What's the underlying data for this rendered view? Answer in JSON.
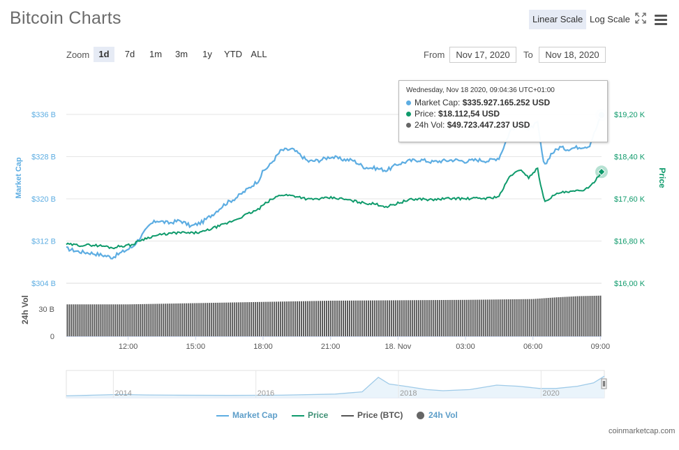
{
  "header": {
    "title": "Bitcoin Charts",
    "linear_scale_label": "Linear Scale",
    "log_scale_label": "Log Scale"
  },
  "zoom": {
    "label": "Zoom",
    "options": [
      "1d",
      "7d",
      "1m",
      "3m",
      "1y",
      "YTD",
      "ALL"
    ],
    "selected": "1d"
  },
  "range": {
    "from_label": "From",
    "from_value": "Nov 17, 2020",
    "to_label": "To",
    "to_value": "Nov 18, 2020"
  },
  "tooltip": {
    "header": "Wednesday, Nov 18 2020, 09:04:36 UTC+01:00",
    "market_cap_label": "Market Cap:",
    "market_cap_value": "$335.927.165.252 USD",
    "price_label": "Price:",
    "price_value": "$18.112,54 USD",
    "vol_label": "24h Vol:",
    "vol_value": "$49.723.447.237 USD"
  },
  "legend": {
    "market_cap": "Market Cap",
    "price": "Price",
    "price_btc": "Price (BTC)",
    "vol": "24h Vol"
  },
  "watermark": "coinmarketcap.com",
  "colors": {
    "market_cap": "#5dade2",
    "price": "#0e9a6b",
    "volume": "#555555",
    "grid": "#e6e6e6",
    "navigator": "#9ecae8"
  },
  "chart_data": {
    "type": "line",
    "left_axis": {
      "title": "Market Cap",
      "ticks": [
        "$304 B",
        "$312 B",
        "$320 B",
        "$328 B",
        "$336 B"
      ],
      "range": [
        304,
        336
      ]
    },
    "right_axis": {
      "title": "Price",
      "ticks": [
        "$16,00 K",
        "$16,80 K",
        "$17,60 K",
        "$18,40 K",
        "$19,20 K"
      ],
      "range": [
        16000,
        19200
      ]
    },
    "volume_axis": {
      "title": "24h Vol",
      "ticks": [
        "0",
        "30 B"
      ]
    },
    "x_ticks": [
      "12:00",
      "15:00",
      "18:00",
      "21:00",
      "18. Nov",
      "03:00",
      "06:00",
      "09:00"
    ],
    "x_tick_hours": [
      12,
      15,
      18,
      21,
      24,
      27,
      30,
      33
    ],
    "x_range_hours": [
      9.25,
      33.05
    ],
    "navigator_ticks": [
      "2014",
      "2016",
      "2018",
      "2020"
    ],
    "series": [
      {
        "name": "Market Cap",
        "unit": "B USD",
        "x": [
          9.25,
          9.8,
          10.4,
          11.0,
          11.3,
          11.6,
          12.2,
          12.5,
          13.0,
          13.3,
          13.8,
          14.3,
          14.8,
          15.3,
          15.8,
          16.3,
          16.8,
          17.3,
          17.8,
          18.0,
          18.3,
          18.8,
          19.3,
          19.6,
          20.0,
          20.5,
          21.0,
          21.5,
          22.0,
          22.5,
          23.0,
          23.5,
          24.0,
          24.5,
          25.0,
          25.5,
          26.0,
          26.5,
          27.0,
          27.5,
          28.0,
          28.5,
          29.0,
          29.5,
          29.8,
          30.2,
          30.5,
          30.8,
          31.2,
          31.5,
          32.0,
          32.5,
          33.05
        ],
        "values": [
          310.6,
          310.0,
          309.7,
          309.2,
          308.9,
          309.6,
          310.9,
          312.5,
          315.2,
          315.9,
          315.4,
          315.9,
          314.8,
          315.6,
          317.2,
          319.0,
          320.2,
          321.8,
          323.5,
          325.2,
          326.4,
          329.2,
          329.4,
          328.5,
          327.1,
          327.3,
          328.0,
          327.5,
          327.3,
          326.0,
          325.8,
          325.4,
          326.6,
          327.2,
          327.4,
          327.0,
          327.2,
          327.4,
          327.1,
          327.4,
          327.2,
          327.8,
          333.0,
          334.5,
          333.0,
          334.5,
          326.0,
          328.5,
          329.8,
          329.4,
          329.8,
          330.0,
          335.9
        ]
      },
      {
        "name": "Price",
        "unit": "USD",
        "x": [
          9.25,
          9.8,
          10.4,
          11.0,
          11.3,
          11.6,
          12.2,
          12.5,
          13.0,
          13.3,
          13.8,
          14.3,
          14.8,
          15.3,
          15.8,
          16.3,
          16.8,
          17.3,
          17.8,
          18.0,
          18.3,
          18.8,
          19.3,
          19.6,
          20.0,
          20.5,
          21.0,
          21.5,
          22.0,
          22.5,
          23.0,
          23.5,
          24.0,
          24.5,
          25.0,
          25.5,
          26.0,
          26.5,
          27.0,
          27.5,
          28.0,
          28.5,
          29.0,
          29.5,
          29.8,
          30.2,
          30.5,
          30.8,
          31.2,
          31.5,
          32.0,
          32.5,
          33.05
        ],
        "values": [
          16740,
          16720,
          16725,
          16700,
          16670,
          16700,
          16730,
          16810,
          16880,
          16910,
          16940,
          16960,
          16950,
          16970,
          17050,
          17120,
          17210,
          17310,
          17400,
          17480,
          17570,
          17680,
          17660,
          17640,
          17590,
          17600,
          17620,
          17600,
          17560,
          17520,
          17500,
          17450,
          17520,
          17580,
          17600,
          17580,
          17600,
          17610,
          17600,
          17610,
          17610,
          17650,
          18050,
          18150,
          18000,
          18180,
          17550,
          17630,
          17720,
          17720,
          17750,
          17800,
          18112
        ]
      },
      {
        "name": "24h Vol",
        "unit": "B USD",
        "x": [
          9.25,
          12.0,
          15.0,
          18.0,
          21.0,
          24.0,
          27.0,
          30.0,
          31.0,
          32.0,
          33.05
        ],
        "values": [
          39.0,
          39.0,
          40.5,
          42.0,
          43.5,
          44.0,
          44.5,
          45.5,
          47.5,
          49.0,
          49.7
        ]
      }
    ]
  }
}
